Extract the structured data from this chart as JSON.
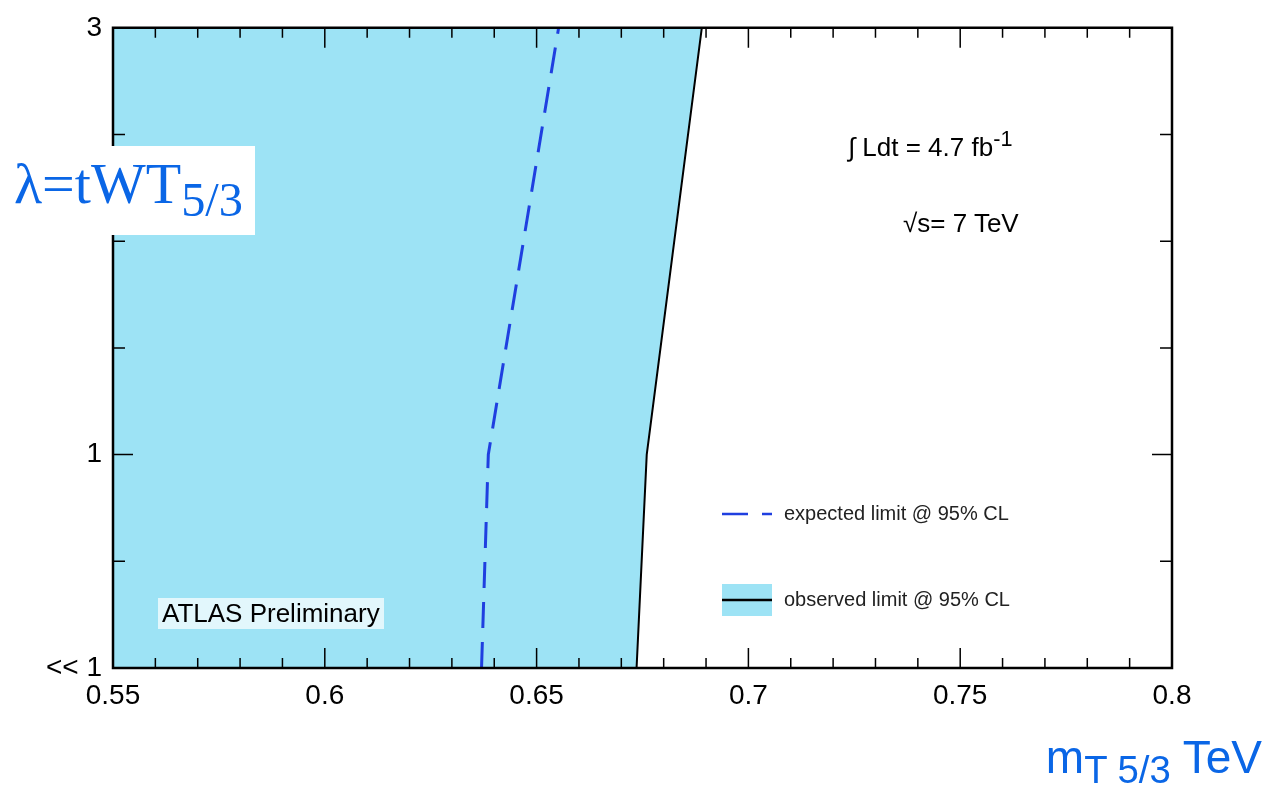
{
  "chart_data": {
    "type": "line",
    "xlabel": "m$_{T 5/3}$ TeV",
    "ylabel": "λ=tWT$_{5/3}$",
    "xlim": [
      0.55,
      0.8
    ],
    "xticks": [
      0.55,
      {
        "value": 0.56,
        "label": null
      },
      {
        "value": 0.57,
        "label": null
      },
      {
        "value": 0.58,
        "label": null
      },
      {
        "value": 0.59,
        "label": null
      },
      0.6,
      {
        "value": 0.61,
        "label": null
      },
      {
        "value": 0.62,
        "label": null
      },
      {
        "value": 0.63,
        "label": null
      },
      {
        "value": 0.64,
        "label": null
      },
      0.65,
      {
        "value": 0.66,
        "label": null
      },
      {
        "value": 0.67,
        "label": null
      },
      {
        "value": 0.68,
        "label": null
      },
      {
        "value": 0.69,
        "label": null
      },
      0.7,
      {
        "value": 0.71,
        "label": null
      },
      {
        "value": 0.72,
        "label": null
      },
      {
        "value": 0.73,
        "label": null
      },
      {
        "value": 0.74,
        "label": null
      },
      0.75,
      {
        "value": 0.76,
        "label": null
      },
      {
        "value": 0.77,
        "label": null
      },
      {
        "value": 0.78,
        "label": null
      },
      {
        "value": 0.79,
        "label": null
      },
      0.8
    ],
    "ylim": [
      0,
      3
    ],
    "yticks": [
      {
        "value": 0,
        "label": "<< 1"
      },
      {
        "value": 0.5,
        "label": null
      },
      1,
      {
        "value": 1.5,
        "label": null
      },
      {
        "value": 2,
        "label": null
      },
      {
        "value": 2.5,
        "label": null
      },
      3
    ],
    "marker": "none",
    "legend": "bottom right",
    "series": [
      {
        "name": "expected limit @ 95% CL",
        "type": "line",
        "color": "#1f3fe0",
        "line_style": "dashed",
        "x": [
          0.637,
          0.6386,
          0.6552
        ],
        "values": [
          0,
          1,
          3
        ]
      },
      {
        "name": "observed limit @ 95% CL",
        "type": "area",
        "color": "#3cc8ec",
        "line_style": "solid",
        "x": [
          0.55,
          0.6736,
          0.676,
          0.689,
          0.55
        ],
        "values": [
          0,
          0,
          1,
          3,
          3
        ]
      }
    ],
    "annotations": [
      "∫ Ldt = 4.7 fb$^{-1}$",
      "√s= 7 TeV",
      "ATLAS Preliminary"
    ]
  }
}
